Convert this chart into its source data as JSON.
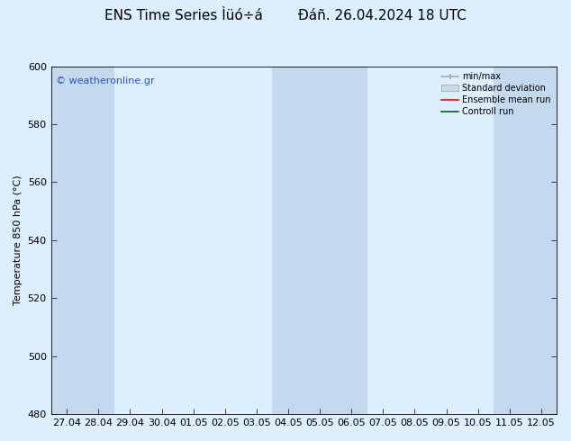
{
  "title": "ENS Time Series Ìüó÷á",
  "subtitle": "Đáñ. 26.04.2024 18 UTC",
  "ylabel": "Temperature 850 hPa (°C)",
  "ylim": [
    480,
    600
  ],
  "yticks": [
    480,
    500,
    520,
    540,
    560,
    580,
    600
  ],
  "x_labels": [
    "27.04",
    "28.04",
    "29.04",
    "30.04",
    "01.05",
    "02.05",
    "03.05",
    "04.05",
    "05.05",
    "06.05",
    "07.05",
    "08.05",
    "09.05",
    "10.05",
    "11.05",
    "12.05"
  ],
  "watermark": "© weatheronline.gr",
  "bg_color": "#ddeeff",
  "plot_bg_color": "#ddeeff",
  "band_color": "#c5d9ee",
  "legend_items": [
    "min/max",
    "Standard deviation",
    "Ensemble mean run",
    "Controll run"
  ],
  "title_fontsize": 11,
  "axis_fontsize": 8,
  "watermark_fontsize": 8,
  "shaded_columns": [
    0,
    1,
    7,
    8,
    9,
    14,
    15
  ],
  "n_cols": 16
}
